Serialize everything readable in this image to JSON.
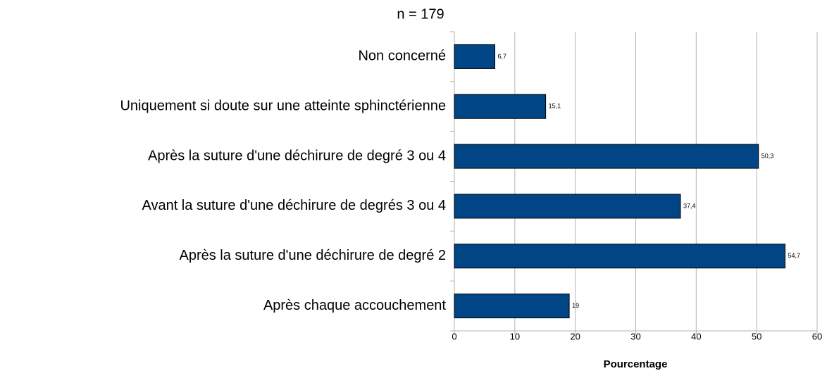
{
  "chart_data": {
    "type": "bar",
    "orientation": "horizontal",
    "title": "n = 179",
    "categories": [
      "Non concerné",
      "Uniquement si doute sur une atteinte sphinctérienne",
      "Après la suture d'une déchirure de degré 3 ou 4",
      "Avant la suture d'une déchirure de degrés 3 ou 4",
      "Après la suture d'une déchirure de degré 2",
      "Après chaque accouchement"
    ],
    "values": [
      6.7,
      15.1,
      50.3,
      37.4,
      54.7,
      19
    ],
    "value_labels": [
      "6,7",
      "15,1",
      "50,3",
      "37,4",
      "54,7",
      "19"
    ],
    "color": "#004586",
    "xlabel": "Pourcentage",
    "xlim": [
      0,
      60
    ],
    "xticks": [
      0,
      10,
      20,
      30,
      40,
      50,
      60
    ],
    "grid": true
  }
}
